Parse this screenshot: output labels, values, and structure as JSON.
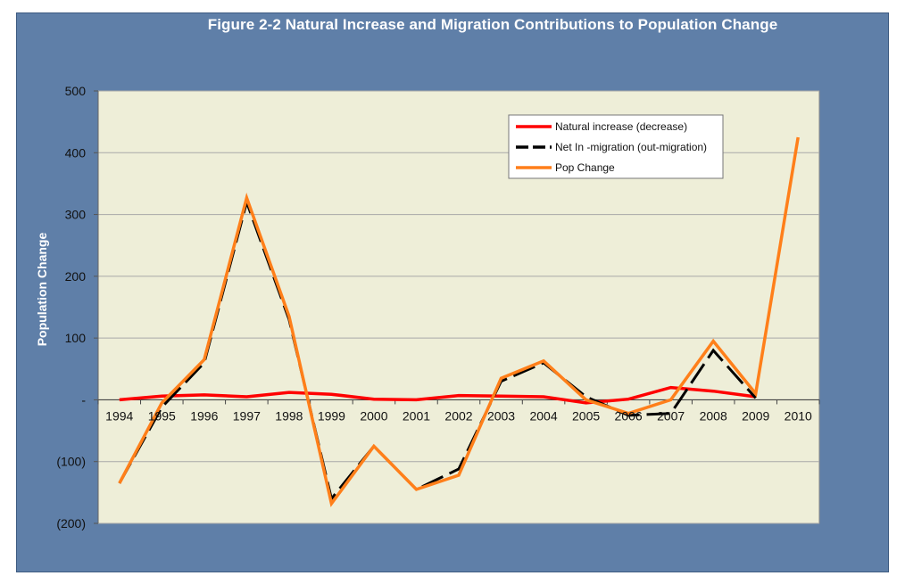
{
  "chart_data": {
    "type": "line",
    "title": "Figure 2-2 Natural Increase and Migration Contributions to Population Change",
    "ylabel": "Population Change",
    "xlabel": "",
    "ylim": [
      -200,
      500
    ],
    "yticks": [
      {
        "value": 500,
        "label": "500"
      },
      {
        "value": 400,
        "label": "400"
      },
      {
        "value": 300,
        "label": "300"
      },
      {
        "value": 200,
        "label": "200"
      },
      {
        "value": 100,
        "label": "100"
      },
      {
        "value": 0,
        "label": "-"
      },
      {
        "value": -100,
        "label": "(100)"
      },
      {
        "value": -200,
        "label": "(200)"
      }
    ],
    "grid": true,
    "legend_position": "top-right",
    "categories": [
      "1994",
      "1995",
      "1996",
      "1997",
      "1998",
      "1999",
      "2000",
      "2001",
      "2002",
      "2003",
      "2004",
      "2005",
      "2006",
      "2007",
      "2008",
      "2009",
      "2010"
    ],
    "series": [
      {
        "name": "Natural increase (decrease)",
        "color": "#ff0000",
        "style": "solid",
        "values": [
          0,
          6,
          8,
          5,
          12,
          9,
          1,
          0,
          7,
          6,
          5,
          -5,
          1,
          20,
          14,
          5,
          null
        ]
      },
      {
        "name": "Net In -migration (out-migration)",
        "color": "#000000",
        "style": "dashed",
        "values": [
          -135,
          -12,
          60,
          320,
          130,
          -160,
          -75,
          -145,
          -112,
          30,
          60,
          5,
          -25,
          -22,
          80,
          3,
          null
        ]
      },
      {
        "name": "Pop Change",
        "color": "#ff7f1a",
        "style": "solid",
        "values": [
          -135,
          -5,
          65,
          327,
          135,
          -168,
          -75,
          -145,
          -122,
          35,
          63,
          0,
          -22,
          0,
          95,
          10,
          425
        ]
      }
    ]
  }
}
